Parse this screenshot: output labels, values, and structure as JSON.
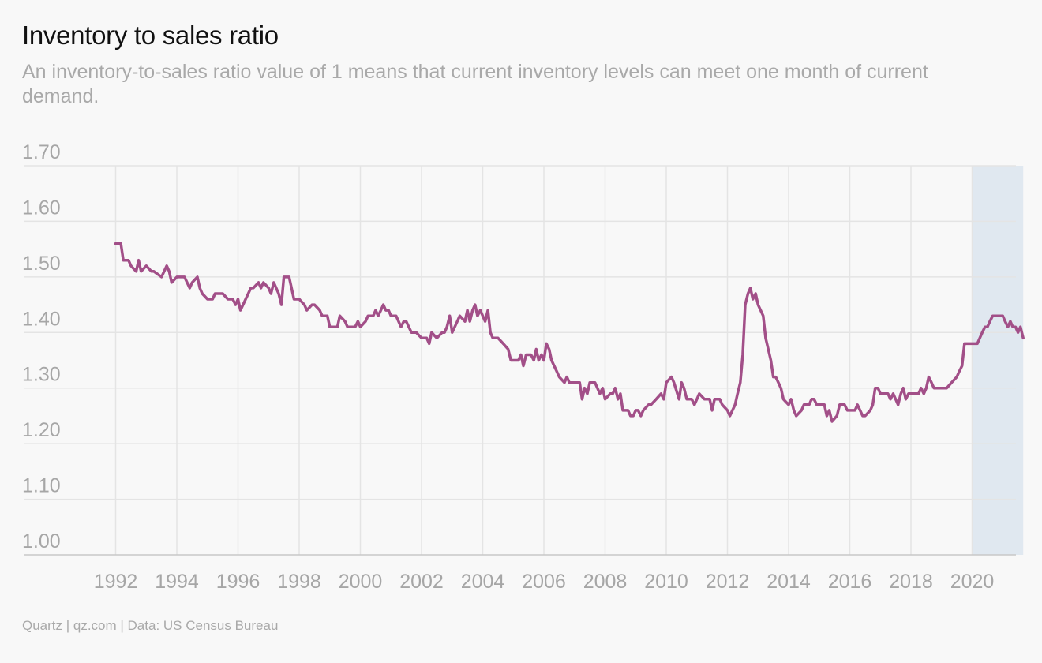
{
  "header": {
    "title": "Inventory to sales ratio",
    "subtitle": "An inventory-to-sales ratio value of 1 means that current inventory levels can meet one month of current demand."
  },
  "footer": {
    "source": "Quartz | qz.com | Data: US Census Bureau"
  },
  "colors": {
    "line": "#a24f88",
    "gridline": "#e4e4e4",
    "highlight": "#e0e8f0",
    "tick_text": "#a6a6a6",
    "background": "#f8f8f8"
  },
  "chart_data": {
    "type": "line",
    "title": "Inventory to sales ratio",
    "subtitle": "An inventory-to-sales ratio value of 1 means that current inventory levels can meet one month of current demand.",
    "xlabel": "",
    "ylabel": "",
    "xlim": [
      1992,
      2021.67
    ],
    "ylim": [
      1.0,
      1.7
    ],
    "x_ticks": [
      1992,
      1994,
      1996,
      1998,
      2000,
      2002,
      2004,
      2006,
      2008,
      2010,
      2012,
      2014,
      2016,
      2018,
      2020
    ],
    "y_ticks": [
      1.0,
      1.1,
      1.2,
      1.3,
      1.4,
      1.5,
      1.6,
      1.7
    ],
    "y_tick_labels": [
      "1.00",
      "1.10",
      "1.20",
      "1.30",
      "1.40",
      "1.50",
      "1.60",
      "1.70"
    ],
    "grid": true,
    "legend": "none",
    "highlight_region": {
      "x_start": 2020.0,
      "x_end": 2021.67
    },
    "series": [
      {
        "points": [
          [
            1992.0,
            1.56
          ],
          [
            1992.17,
            1.56
          ],
          [
            1992.25,
            1.53
          ],
          [
            1992.42,
            1.53
          ],
          [
            1992.5,
            1.52
          ],
          [
            1992.67,
            1.51
          ],
          [
            1992.75,
            1.53
          ],
          [
            1992.83,
            1.51
          ],
          [
            1993.0,
            1.52
          ],
          [
            1993.17,
            1.51
          ],
          [
            1993.25,
            1.51
          ],
          [
            1993.5,
            1.5
          ],
          [
            1993.67,
            1.52
          ],
          [
            1993.75,
            1.51
          ],
          [
            1993.83,
            1.49
          ],
          [
            1994.0,
            1.5
          ],
          [
            1994.25,
            1.5
          ],
          [
            1994.42,
            1.48
          ],
          [
            1994.5,
            1.49
          ],
          [
            1994.67,
            1.5
          ],
          [
            1994.75,
            1.48
          ],
          [
            1994.83,
            1.47
          ],
          [
            1995.0,
            1.46
          ],
          [
            1995.17,
            1.46
          ],
          [
            1995.25,
            1.47
          ],
          [
            1995.5,
            1.47
          ],
          [
            1995.67,
            1.46
          ],
          [
            1995.83,
            1.46
          ],
          [
            1995.92,
            1.45
          ],
          [
            1996.0,
            1.46
          ],
          [
            1996.08,
            1.44
          ],
          [
            1996.25,
            1.46
          ],
          [
            1996.42,
            1.48
          ],
          [
            1996.5,
            1.48
          ],
          [
            1996.67,
            1.49
          ],
          [
            1996.75,
            1.48
          ],
          [
            1996.83,
            1.49
          ],
          [
            1997.0,
            1.48
          ],
          [
            1997.08,
            1.47
          ],
          [
            1997.17,
            1.49
          ],
          [
            1997.33,
            1.47
          ],
          [
            1997.42,
            1.45
          ],
          [
            1997.5,
            1.5
          ],
          [
            1997.67,
            1.5
          ],
          [
            1997.83,
            1.46
          ],
          [
            1998.0,
            1.46
          ],
          [
            1998.17,
            1.45
          ],
          [
            1998.25,
            1.44
          ],
          [
            1998.42,
            1.45
          ],
          [
            1998.5,
            1.45
          ],
          [
            1998.67,
            1.44
          ],
          [
            1998.75,
            1.43
          ],
          [
            1998.92,
            1.43
          ],
          [
            1999.0,
            1.41
          ],
          [
            1999.17,
            1.41
          ],
          [
            1999.25,
            1.41
          ],
          [
            1999.33,
            1.43
          ],
          [
            1999.5,
            1.42
          ],
          [
            1999.58,
            1.41
          ],
          [
            1999.83,
            1.41
          ],
          [
            1999.92,
            1.42
          ],
          [
            2000.0,
            1.41
          ],
          [
            2000.17,
            1.42
          ],
          [
            2000.25,
            1.43
          ],
          [
            2000.42,
            1.43
          ],
          [
            2000.5,
            1.44
          ],
          [
            2000.58,
            1.43
          ],
          [
            2000.67,
            1.44
          ],
          [
            2000.75,
            1.45
          ],
          [
            2000.83,
            1.44
          ],
          [
            2000.92,
            1.44
          ],
          [
            2001.0,
            1.43
          ],
          [
            2001.17,
            1.43
          ],
          [
            2001.25,
            1.42
          ],
          [
            2001.33,
            1.41
          ],
          [
            2001.42,
            1.42
          ],
          [
            2001.5,
            1.42
          ],
          [
            2001.67,
            1.4
          ],
          [
            2001.75,
            1.4
          ],
          [
            2001.83,
            1.4
          ],
          [
            2002.0,
            1.39
          ],
          [
            2002.08,
            1.39
          ],
          [
            2002.17,
            1.39
          ],
          [
            2002.25,
            1.38
          ],
          [
            2002.33,
            1.4
          ],
          [
            2002.5,
            1.39
          ],
          [
            2002.67,
            1.4
          ],
          [
            2002.75,
            1.4
          ],
          [
            2002.83,
            1.41
          ],
          [
            2002.92,
            1.43
          ],
          [
            2003.0,
            1.4
          ],
          [
            2003.17,
            1.42
          ],
          [
            2003.25,
            1.43
          ],
          [
            2003.42,
            1.42
          ],
          [
            2003.5,
            1.44
          ],
          [
            2003.58,
            1.42
          ],
          [
            2003.67,
            1.44
          ],
          [
            2003.75,
            1.45
          ],
          [
            2003.83,
            1.43
          ],
          [
            2003.92,
            1.44
          ],
          [
            2004.0,
            1.43
          ],
          [
            2004.08,
            1.42
          ],
          [
            2004.17,
            1.44
          ],
          [
            2004.25,
            1.4
          ],
          [
            2004.33,
            1.39
          ],
          [
            2004.5,
            1.39
          ],
          [
            2004.67,
            1.38
          ],
          [
            2004.83,
            1.37
          ],
          [
            2004.92,
            1.35
          ],
          [
            2005.0,
            1.35
          ],
          [
            2005.17,
            1.35
          ],
          [
            2005.25,
            1.36
          ],
          [
            2005.33,
            1.34
          ],
          [
            2005.42,
            1.36
          ],
          [
            2005.58,
            1.36
          ],
          [
            2005.67,
            1.35
          ],
          [
            2005.75,
            1.37
          ],
          [
            2005.83,
            1.35
          ],
          [
            2005.92,
            1.36
          ],
          [
            2006.0,
            1.35
          ],
          [
            2006.08,
            1.38
          ],
          [
            2006.17,
            1.37
          ],
          [
            2006.25,
            1.35
          ],
          [
            2006.42,
            1.33
          ],
          [
            2006.5,
            1.32
          ],
          [
            2006.67,
            1.31
          ],
          [
            2006.75,
            1.32
          ],
          [
            2006.83,
            1.31
          ],
          [
            2007.0,
            1.31
          ],
          [
            2007.17,
            1.31
          ],
          [
            2007.25,
            1.28
          ],
          [
            2007.33,
            1.3
          ],
          [
            2007.42,
            1.29
          ],
          [
            2007.5,
            1.31
          ],
          [
            2007.67,
            1.31
          ],
          [
            2007.83,
            1.29
          ],
          [
            2007.92,
            1.3
          ],
          [
            2008.0,
            1.28
          ],
          [
            2008.17,
            1.29
          ],
          [
            2008.25,
            1.29
          ],
          [
            2008.33,
            1.3
          ],
          [
            2008.42,
            1.28
          ],
          [
            2008.5,
            1.29
          ],
          [
            2008.58,
            1.26
          ],
          [
            2008.75,
            1.26
          ],
          [
            2008.83,
            1.25
          ],
          [
            2008.92,
            1.25
          ],
          [
            2009.0,
            1.26
          ],
          [
            2009.08,
            1.26
          ],
          [
            2009.17,
            1.25
          ],
          [
            2009.25,
            1.26
          ],
          [
            2009.42,
            1.27
          ],
          [
            2009.5,
            1.27
          ],
          [
            2009.67,
            1.28
          ],
          [
            2009.83,
            1.29
          ],
          [
            2009.92,
            1.28
          ],
          [
            2010.0,
            1.31
          ],
          [
            2010.17,
            1.32
          ],
          [
            2010.25,
            1.31
          ],
          [
            2010.42,
            1.28
          ],
          [
            2010.5,
            1.31
          ],
          [
            2010.58,
            1.3
          ],
          [
            2010.67,
            1.28
          ],
          [
            2010.83,
            1.28
          ],
          [
            2010.92,
            1.27
          ],
          [
            2011.0,
            1.28
          ],
          [
            2011.08,
            1.29
          ],
          [
            2011.25,
            1.28
          ],
          [
            2011.42,
            1.28
          ],
          [
            2011.5,
            1.26
          ],
          [
            2011.58,
            1.28
          ],
          [
            2011.75,
            1.28
          ],
          [
            2011.83,
            1.27
          ],
          [
            2012.0,
            1.26
          ],
          [
            2012.08,
            1.25
          ],
          [
            2012.25,
            1.27
          ],
          [
            2012.33,
            1.29
          ],
          [
            2012.42,
            1.31
          ],
          [
            2012.5,
            1.36
          ],
          [
            2012.58,
            1.45
          ],
          [
            2012.67,
            1.47
          ],
          [
            2012.75,
            1.48
          ],
          [
            2012.83,
            1.46
          ],
          [
            2012.92,
            1.47
          ],
          [
            2013.0,
            1.45
          ],
          [
            2013.17,
            1.43
          ],
          [
            2013.25,
            1.39
          ],
          [
            2013.42,
            1.35
          ],
          [
            2013.5,
            1.32
          ],
          [
            2013.58,
            1.32
          ],
          [
            2013.75,
            1.3
          ],
          [
            2013.83,
            1.28
          ],
          [
            2014.0,
            1.27
          ],
          [
            2014.08,
            1.28
          ],
          [
            2014.17,
            1.26
          ],
          [
            2014.25,
            1.25
          ],
          [
            2014.42,
            1.26
          ],
          [
            2014.5,
            1.27
          ],
          [
            2014.67,
            1.27
          ],
          [
            2014.75,
            1.28
          ],
          [
            2014.83,
            1.28
          ],
          [
            2014.92,
            1.27
          ],
          [
            2015.0,
            1.27
          ],
          [
            2015.17,
            1.27
          ],
          [
            2015.25,
            1.25
          ],
          [
            2015.33,
            1.26
          ],
          [
            2015.42,
            1.24
          ],
          [
            2015.58,
            1.25
          ],
          [
            2015.67,
            1.27
          ],
          [
            2015.83,
            1.27
          ],
          [
            2015.92,
            1.26
          ],
          [
            2016.0,
            1.26
          ],
          [
            2016.17,
            1.26
          ],
          [
            2016.25,
            1.27
          ],
          [
            2016.42,
            1.25
          ],
          [
            2016.5,
            1.25
          ],
          [
            2016.67,
            1.26
          ],
          [
            2016.75,
            1.27
          ],
          [
            2016.83,
            1.3
          ],
          [
            2016.92,
            1.3
          ],
          [
            2017.0,
            1.29
          ],
          [
            2017.08,
            1.29
          ],
          [
            2017.25,
            1.29
          ],
          [
            2017.33,
            1.28
          ],
          [
            2017.42,
            1.29
          ],
          [
            2017.5,
            1.28
          ],
          [
            2017.58,
            1.27
          ],
          [
            2017.67,
            1.29
          ],
          [
            2017.75,
            1.3
          ],
          [
            2017.83,
            1.28
          ],
          [
            2017.92,
            1.29
          ],
          [
            2018.0,
            1.29
          ],
          [
            2018.17,
            1.29
          ],
          [
            2018.25,
            1.29
          ],
          [
            2018.33,
            1.3
          ],
          [
            2018.42,
            1.29
          ],
          [
            2018.5,
            1.3
          ],
          [
            2018.58,
            1.32
          ],
          [
            2018.67,
            1.31
          ],
          [
            2018.75,
            1.3
          ],
          [
            2018.83,
            1.3
          ],
          [
            2019.0,
            1.3
          ],
          [
            2019.17,
            1.3
          ],
          [
            2019.33,
            1.31
          ],
          [
            2019.5,
            1.32
          ],
          [
            2019.58,
            1.33
          ],
          [
            2019.67,
            1.34
          ],
          [
            2019.75,
            1.38
          ],
          [
            2019.83,
            1.38
          ],
          [
            2019.92,
            1.38
          ],
          [
            2020.0,
            1.38
          ],
          [
            2020.08,
            1.38
          ],
          [
            2020.17,
            1.38
          ],
          [
            2020.25,
            1.39
          ],
          [
            2020.33,
            1.4
          ],
          [
            2020.42,
            1.41
          ],
          [
            2020.5,
            1.41
          ],
          [
            2020.58,
            1.42
          ],
          [
            2020.67,
            1.43
          ],
          [
            2020.75,
            1.43
          ],
          [
            2020.83,
            1.43
          ],
          [
            2020.92,
            1.43
          ],
          [
            2021.0,
            1.43
          ],
          [
            2021.08,
            1.42
          ],
          [
            2021.17,
            1.41
          ],
          [
            2021.25,
            1.42
          ],
          [
            2021.33,
            1.41
          ],
          [
            2021.42,
            1.41
          ],
          [
            2021.5,
            1.4
          ],
          [
            2021.58,
            1.41
          ],
          [
            2021.67,
            1.39
          ]
        ]
      }
    ]
  }
}
